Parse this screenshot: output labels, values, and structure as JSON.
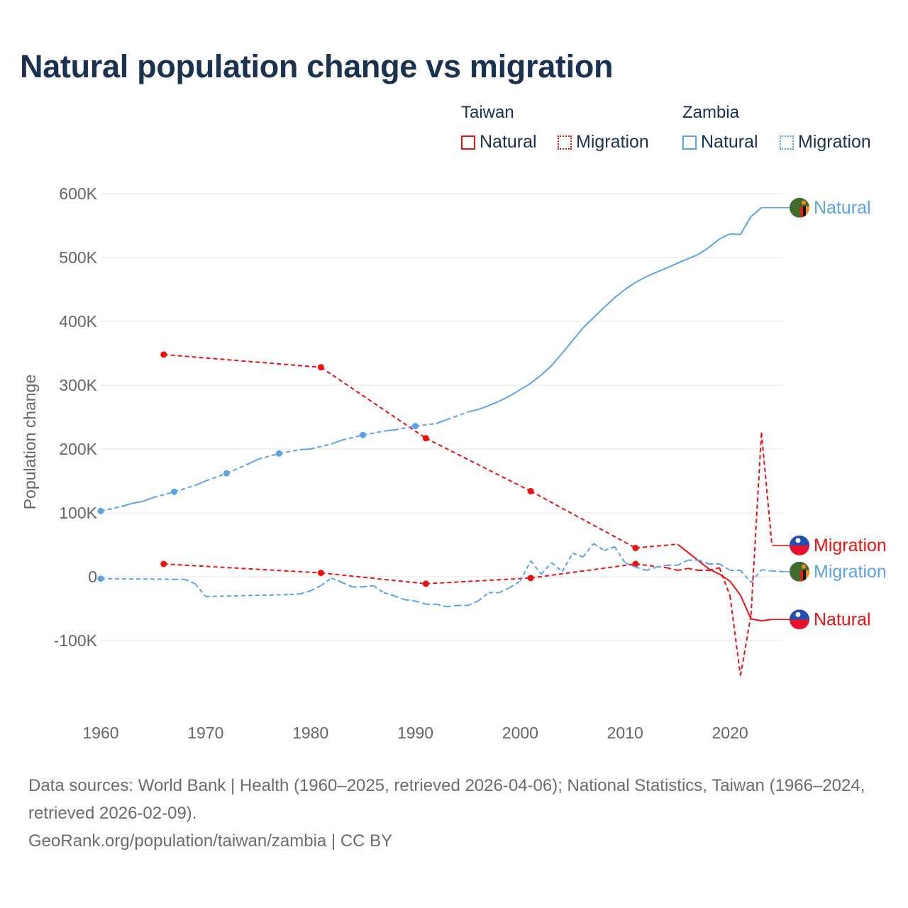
{
  "title": "Natural population change vs migration",
  "legend": {
    "groups": [
      {
        "country": "Taiwan",
        "items": [
          {
            "label": "Natural",
            "style": "solid",
            "color": "#ee1111"
          },
          {
            "label": "Migration",
            "style": "dotted",
            "color": "#ee1111"
          }
        ]
      },
      {
        "country": "Zambia",
        "items": [
          {
            "label": "Natural",
            "style": "solid",
            "color": "#5ba3e8"
          },
          {
            "label": "Migration",
            "style": "dotted",
            "color": "#5ba3e8"
          }
        ]
      }
    ]
  },
  "chart_data": {
    "type": "line",
    "title": "Natural population change vs migration",
    "xlabel": "",
    "ylabel": "Population change",
    "xlim": [
      1960,
      2025
    ],
    "ylim": [
      -200000,
      600000
    ],
    "x_ticks": [
      1960,
      1970,
      1980,
      1990,
      2000,
      2010,
      2020
    ],
    "x_tick_labels": [
      "1960",
      "1970",
      "1980",
      "1990",
      "2000",
      "2010",
      "2020"
    ],
    "y_ticks": [
      600000,
      500000,
      400000,
      300000,
      200000,
      100000,
      0,
      -100000
    ],
    "y_tick_labels": [
      "600K",
      "500K",
      "400K",
      "300K",
      "200K",
      "100K",
      "0",
      "-100K"
    ],
    "grid": true,
    "series": [
      {
        "name": "Natural",
        "country": "Taiwan",
        "color": "#ee1111",
        "style": "solid",
        "end_label": "Natural",
        "flag": "taiwan",
        "x": [
          1966,
          1981,
          1991,
          2001,
          2011,
          2015,
          2016,
          2017,
          2018,
          2019,
          2020,
          2021,
          2022,
          2023,
          2024
        ],
        "y": [
          348000,
          328000,
          217000,
          134000,
          45000,
          51000,
          38000,
          25000,
          12000,
          4000,
          -7000,
          -29000,
          -66000,
          -69000,
          -67000
        ]
      },
      {
        "name": "Migration",
        "country": "Taiwan",
        "color": "#ee1111",
        "style": "dashed",
        "end_label": "Migration",
        "flag": "taiwan",
        "x": [
          1966,
          1981,
          1991,
          2001,
          2011,
          2014,
          2015,
          2016,
          2017,
          2018,
          2019,
          2020,
          2021,
          2022,
          2023,
          2024
        ],
        "y": [
          20000,
          6000,
          -11000,
          -2000,
          20000,
          14000,
          10000,
          13000,
          10000,
          10000,
          14000,
          -30000,
          -155000,
          -60000,
          226000,
          49000
        ]
      },
      {
        "name": "Natural",
        "country": "Zambia",
        "color": "#5ba3e8",
        "style": "solid",
        "end_label": "Natural",
        "flag": "zambia",
        "x": [
          1960,
          1962,
          1963,
          1964,
          1965,
          1967,
          1969,
          1970,
          1972,
          1974,
          1975,
          1977,
          1979,
          1980,
          1982,
          1983,
          1985,
          1987,
          1988,
          1990,
          1992,
          1993,
          1995,
          1996,
          1997,
          1998,
          1999,
          2000,
          2001,
          2002,
          2003,
          2004,
          2005,
          2006,
          2007,
          2008,
          2009,
          2010,
          2011,
          2012,
          2013,
          2014,
          2015,
          2016,
          2017,
          2018,
          2019,
          2020,
          2021,
          2022,
          2023
        ],
        "y": [
          103000,
          110000,
          115000,
          118000,
          124000,
          133000,
          143000,
          150000,
          162000,
          176000,
          184000,
          193000,
          199000,
          200000,
          208000,
          214000,
          222000,
          228000,
          230000,
          236000,
          240000,
          246000,
          258000,
          262000,
          268000,
          275000,
          283000,
          293000,
          303000,
          316000,
          331000,
          350000,
          370000,
          390000,
          406000,
          422000,
          437000,
          450000,
          461000,
          470000,
          477000,
          484000,
          491000,
          498000,
          505000,
          516000,
          529000,
          537000,
          536000,
          564000,
          578000
        ]
      },
      {
        "name": "Migration",
        "country": "Zambia",
        "color": "#5ba3e8",
        "style": "dashed",
        "end_label": "Migration",
        "flag": "zambia",
        "x": [
          1960,
          1967,
          1968,
          1969,
          1970,
          1978,
          1979,
          1980,
          1981,
          1982,
          1983,
          1984,
          1985,
          1986,
          1987,
          1988,
          1989,
          1990,
          1991,
          1992,
          1993,
          1994,
          1995,
          1996,
          1997,
          1998,
          1999,
          2000,
          2001,
          2002,
          2003,
          2004,
          2005,
          2006,
          2007,
          2008,
          2009,
          2010,
          2011,
          2012,
          2013,
          2014,
          2015,
          2016,
          2017,
          2018,
          2019,
          2020,
          2021,
          2022,
          2023,
          2024,
          2025
        ],
        "y": [
          -3000,
          -4000,
          -4000,
          -11000,
          -31000,
          -28000,
          -27000,
          -22000,
          -14000,
          -2000,
          -9000,
          -16000,
          -16000,
          -14000,
          -25000,
          -30000,
          -36000,
          -38000,
          -43000,
          -43000,
          -47000,
          -45000,
          -45000,
          -38000,
          -25000,
          -25000,
          -17000,
          -7000,
          25000,
          4000,
          22000,
          8000,
          37000,
          31000,
          52000,
          41000,
          47000,
          22000,
          15000,
          10000,
          15000,
          18000,
          18000,
          26000,
          26000,
          20000,
          20000,
          10000,
          10000,
          -9000,
          11000,
          9000,
          8000
        ]
      }
    ]
  },
  "source": {
    "line1": "Data sources: World Bank | Health (1960–2025, retrieved 2026-04-06); National Statistics, Taiwan (1966–2024, retrieved 2026-02-09).",
    "line2": "GeoRank.org/population/taiwan/zambia | CC BY"
  }
}
